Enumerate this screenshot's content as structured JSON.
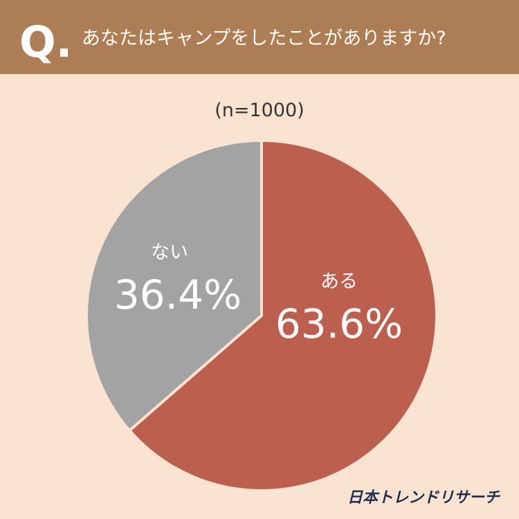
{
  "chart_data": {
    "type": "pie",
    "title_prefix": "Q.",
    "title": "あなたはキャンプをしたことがありますか?",
    "subtitle": "(n=1000)",
    "categories": [
      "ある",
      "ない"
    ],
    "values": [
      63.6,
      36.4
    ],
    "value_labels": [
      "63.6%",
      "36.4%"
    ],
    "colors": [
      "#bc5f4f",
      "#a3a3a3"
    ],
    "source": "日本トレンドリサーチ"
  }
}
